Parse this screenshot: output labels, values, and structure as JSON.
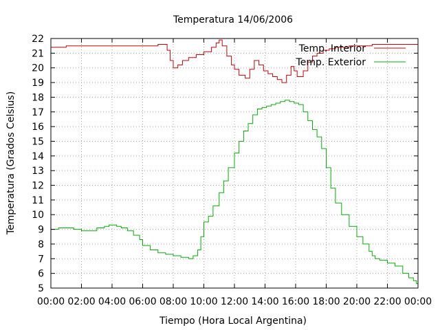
{
  "chart_data": {
    "type": "line",
    "title": "Temperatura 14/06/2006",
    "xlabel": "Tiempo (Hora Local Argentina)",
    "ylabel": "Temperatura (Grados Celsius)",
    "xlim": [
      0,
      24
    ],
    "ylim": [
      5,
      22
    ],
    "x_ticks": [
      {
        "value": 0,
        "label": "00:00"
      },
      {
        "value": 2,
        "label": "02:00"
      },
      {
        "value": 4,
        "label": "04:00"
      },
      {
        "value": 6,
        "label": "06:00"
      },
      {
        "value": 8,
        "label": "08:00"
      },
      {
        "value": 10,
        "label": "10:00"
      },
      {
        "value": 12,
        "label": "12:00"
      },
      {
        "value": 14,
        "label": "14:00"
      },
      {
        "value": 16,
        "label": "16:00"
      },
      {
        "value": 18,
        "label": "18:00"
      },
      {
        "value": 20,
        "label": "20:00"
      },
      {
        "value": 22,
        "label": "22:00"
      },
      {
        "value": 24,
        "label": "00:00"
      }
    ],
    "y_ticks": [
      5,
      6,
      7,
      8,
      9,
      10,
      11,
      12,
      13,
      14,
      15,
      16,
      17,
      18,
      19,
      20,
      21,
      22
    ],
    "grid": true,
    "legend": "top-right",
    "series": [
      {
        "name": "Temp. Interior",
        "color": "#cc0000",
        "x": [
          0,
          0.5,
          1.0,
          1.5,
          2.0,
          2.5,
          3.0,
          3.5,
          4.0,
          4.5,
          5.0,
          5.5,
          6.0,
          6.5,
          7.0,
          7.4,
          7.6,
          7.8,
          8.0,
          8.3,
          8.6,
          9.0,
          9.5,
          10.0,
          10.5,
          10.8,
          11.0,
          11.2,
          11.5,
          11.8,
          12.0,
          12.3,
          12.7,
          13.0,
          13.3,
          13.6,
          13.9,
          14.2,
          14.5,
          14.8,
          15.1,
          15.4,
          15.7,
          15.9,
          16.1,
          16.3,
          16.5,
          16.8,
          17.1,
          17.4,
          17.8,
          18.2,
          18.6,
          19.0,
          19.5,
          20.0,
          20.5,
          21.0,
          21.5,
          22.0,
          22.5,
          23.0,
          23.5,
          24.0
        ],
        "y": [
          21.4,
          21.4,
          21.5,
          21.5,
          21.5,
          21.5,
          21.5,
          21.5,
          21.5,
          21.5,
          21.5,
          21.5,
          21.5,
          21.5,
          21.6,
          21.6,
          21.2,
          20.5,
          20.0,
          20.2,
          20.5,
          20.7,
          20.9,
          21.1,
          21.4,
          21.7,
          21.9,
          21.5,
          20.8,
          20.2,
          19.9,
          19.5,
          19.3,
          19.9,
          20.5,
          20.2,
          19.8,
          19.6,
          19.4,
          19.2,
          19.0,
          19.5,
          20.1,
          19.8,
          19.4,
          19.4,
          19.8,
          20.4,
          20.8,
          21.0,
          21.2,
          21.3,
          21.4,
          21.4,
          21.5,
          21.5,
          21.5,
          21.6,
          21.6,
          21.6,
          21.6,
          21.6,
          21.6,
          21.6
        ]
      },
      {
        "name": "Temp. Exterior",
        "color": "#00b000",
        "x": [
          0,
          0.5,
          1.0,
          1.5,
          2.0,
          2.5,
          3.0,
          3.5,
          3.8,
          4.0,
          4.3,
          4.6,
          5.0,
          5.4,
          5.8,
          6.0,
          6.5,
          7.0,
          7.5,
          8.0,
          8.5,
          8.8,
          9.0,
          9.3,
          9.6,
          9.8,
          10.0,
          10.3,
          10.6,
          11.0,
          11.3,
          11.6,
          12.0,
          12.3,
          12.6,
          12.9,
          13.2,
          13.5,
          13.8,
          14.1,
          14.4,
          14.7,
          15.0,
          15.3,
          15.6,
          15.9,
          16.2,
          16.5,
          16.8,
          17.1,
          17.4,
          17.7,
          18.0,
          18.3,
          18.6,
          19.0,
          19.5,
          20.0,
          20.4,
          20.8,
          21.0,
          21.2,
          21.5,
          22.0,
          22.5,
          23.0,
          23.4,
          23.7,
          23.9,
          24.0
        ],
        "y": [
          9.0,
          9.1,
          9.1,
          9.0,
          8.9,
          8.9,
          9.1,
          9.2,
          9.3,
          9.3,
          9.2,
          9.1,
          8.9,
          8.6,
          8.3,
          7.9,
          7.6,
          7.4,
          7.3,
          7.2,
          7.1,
          7.1,
          7.0,
          7.2,
          7.6,
          8.5,
          9.5,
          9.9,
          10.6,
          11.5,
          12.3,
          13.2,
          14.2,
          15.0,
          15.7,
          16.2,
          16.8,
          17.2,
          17.3,
          17.4,
          17.5,
          17.6,
          17.7,
          17.8,
          17.7,
          17.6,
          17.5,
          17.0,
          16.4,
          15.8,
          15.3,
          14.5,
          13.2,
          11.8,
          10.8,
          10.0,
          9.2,
          8.5,
          8.0,
          7.5,
          7.2,
          7.0,
          6.9,
          6.7,
          6.5,
          6.0,
          5.7,
          5.5,
          5.3,
          5.2
        ]
      }
    ]
  }
}
